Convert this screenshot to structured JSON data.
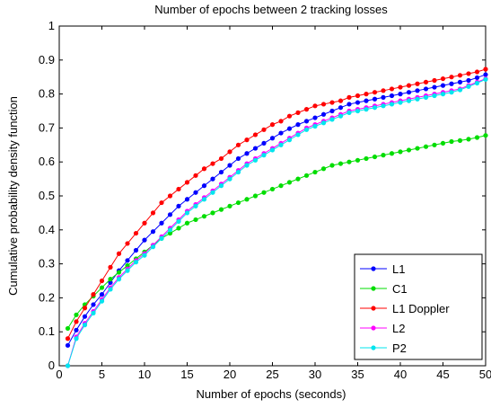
{
  "chart_data": {
    "type": "line",
    "title": "Number of epochs between 2 tracking losses",
    "xlabel": "Number of epochs (seconds)",
    "ylabel": "Cumulative probability density function",
    "xlim": [
      0,
      50
    ],
    "ylim": [
      0,
      1
    ],
    "xticks": [
      "0",
      "5",
      "10",
      "15",
      "20",
      "25",
      "30",
      "35",
      "40",
      "45",
      "50"
    ],
    "yticks": [
      "0",
      "0.1",
      "0.2",
      "0.3",
      "0.4",
      "0.5",
      "0.6",
      "0.7",
      "0.8",
      "0.9",
      "1"
    ],
    "grid": false,
    "legend_position": "bottom-right",
    "x": [
      1,
      2,
      3,
      4,
      5,
      6,
      7,
      8,
      9,
      10,
      11,
      12,
      13,
      14,
      15,
      16,
      17,
      18,
      19,
      20,
      21,
      22,
      23,
      24,
      25,
      26,
      27,
      28,
      29,
      30,
      31,
      32,
      33,
      34,
      35,
      36,
      37,
      38,
      39,
      40,
      41,
      42,
      43,
      44,
      45,
      46,
      47,
      48,
      49,
      50
    ],
    "series": [
      {
        "name": "L1",
        "color": "#0000ff",
        "values": [
          0.06,
          0.105,
          0.145,
          0.18,
          0.21,
          0.245,
          0.28,
          0.31,
          0.34,
          0.37,
          0.395,
          0.42,
          0.445,
          0.47,
          0.49,
          0.51,
          0.53,
          0.55,
          0.57,
          0.59,
          0.61,
          0.625,
          0.64,
          0.655,
          0.67,
          0.685,
          0.698,
          0.71,
          0.72,
          0.73,
          0.74,
          0.75,
          0.76,
          0.77,
          0.775,
          0.78,
          0.785,
          0.79,
          0.795,
          0.8,
          0.805,
          0.81,
          0.815,
          0.82,
          0.825,
          0.83,
          0.835,
          0.84,
          0.848,
          0.857
        ]
      },
      {
        "name": "C1",
        "color": "#00dd00",
        "values": [
          0.11,
          0.15,
          0.18,
          0.205,
          0.23,
          0.255,
          0.275,
          0.295,
          0.315,
          0.335,
          0.355,
          0.375,
          0.39,
          0.405,
          0.42,
          0.43,
          0.44,
          0.45,
          0.46,
          0.47,
          0.48,
          0.49,
          0.5,
          0.51,
          0.52,
          0.53,
          0.54,
          0.55,
          0.56,
          0.57,
          0.58,
          0.59,
          0.595,
          0.6,
          0.605,
          0.61,
          0.615,
          0.62,
          0.625,
          0.63,
          0.635,
          0.64,
          0.645,
          0.65,
          0.655,
          0.66,
          0.663,
          0.667,
          0.672,
          0.678
        ]
      },
      {
        "name": "L1 Doppler",
        "color": "#ff0000",
        "values": [
          0.08,
          0.13,
          0.17,
          0.21,
          0.25,
          0.29,
          0.33,
          0.36,
          0.39,
          0.42,
          0.45,
          0.48,
          0.5,
          0.52,
          0.54,
          0.56,
          0.58,
          0.595,
          0.61,
          0.63,
          0.65,
          0.665,
          0.68,
          0.695,
          0.71,
          0.72,
          0.735,
          0.745,
          0.755,
          0.765,
          0.77,
          0.775,
          0.78,
          0.79,
          0.795,
          0.8,
          0.805,
          0.81,
          0.815,
          0.82,
          0.825,
          0.83,
          0.835,
          0.84,
          0.845,
          0.85,
          0.855,
          0.86,
          0.865,
          0.873
        ]
      },
      {
        "name": "L2",
        "color": "#ff00ff",
        "values": [
          0.0,
          0.085,
          0.125,
          0.16,
          0.195,
          0.23,
          0.26,
          0.285,
          0.31,
          0.33,
          0.355,
          0.38,
          0.405,
          0.43,
          0.455,
          0.475,
          0.495,
          0.515,
          0.535,
          0.555,
          0.575,
          0.595,
          0.61,
          0.625,
          0.64,
          0.655,
          0.67,
          0.685,
          0.7,
          0.71,
          0.72,
          0.73,
          0.74,
          0.75,
          0.755,
          0.76,
          0.765,
          0.77,
          0.775,
          0.78,
          0.785,
          0.79,
          0.795,
          0.8,
          0.805,
          0.81,
          0.815,
          0.825,
          0.835,
          0.845
        ]
      },
      {
        "name": "P2",
        "color": "#00e5ee",
        "values": [
          0.0,
          0.08,
          0.12,
          0.155,
          0.19,
          0.225,
          0.255,
          0.28,
          0.305,
          0.325,
          0.35,
          0.375,
          0.4,
          0.425,
          0.45,
          0.47,
          0.49,
          0.51,
          0.53,
          0.55,
          0.57,
          0.59,
          0.605,
          0.62,
          0.635,
          0.65,
          0.665,
          0.68,
          0.695,
          0.705,
          0.715,
          0.725,
          0.735,
          0.745,
          0.75,
          0.755,
          0.76,
          0.765,
          0.77,
          0.775,
          0.78,
          0.785,
          0.79,
          0.795,
          0.8,
          0.805,
          0.812,
          0.822,
          0.832,
          0.843
        ]
      }
    ]
  }
}
